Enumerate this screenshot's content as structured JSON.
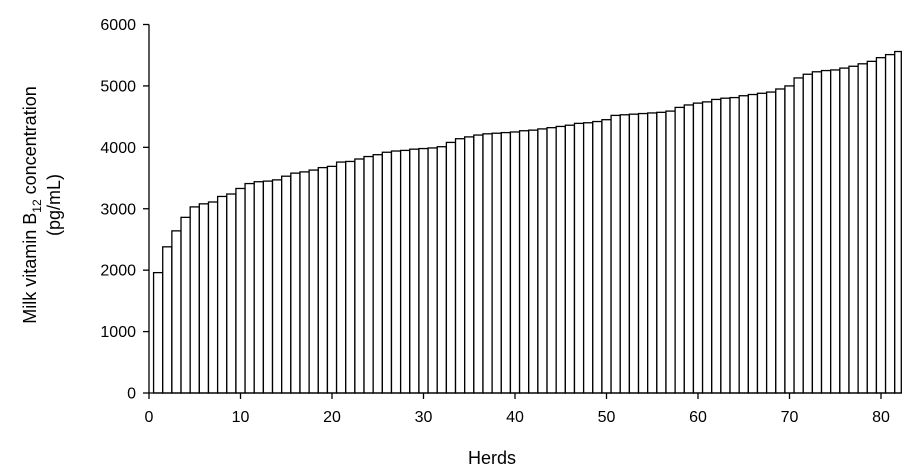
{
  "chart_data": {
    "type": "bar",
    "xlabel": "Herds",
    "ylabel_line1_pre": "Milk vitamin B",
    "ylabel_line1_sub": "12",
    "ylabel_line1_post": " concentration",
    "ylabel_line2": "(pg/mL)",
    "ylim": [
      0,
      6000
    ],
    "yticks": [
      0,
      1000,
      2000,
      3000,
      4000,
      5000,
      6000
    ],
    "xlim": [
      0,
      82.5
    ],
    "xticks": [
      0,
      10,
      20,
      30,
      40,
      50,
      60,
      70,
      80
    ],
    "grid": false,
    "legend": "none",
    "categories": [
      1,
      2,
      3,
      4,
      5,
      6,
      7,
      8,
      9,
      10,
      11,
      12,
      13,
      14,
      15,
      16,
      17,
      18,
      19,
      20,
      21,
      22,
      23,
      24,
      25,
      26,
      27,
      28,
      29,
      30,
      31,
      32,
      33,
      34,
      35,
      36,
      37,
      38,
      39,
      40,
      41,
      42,
      43,
      44,
      45,
      46,
      47,
      48,
      49,
      50,
      51,
      52,
      53,
      54,
      55,
      56,
      57,
      58,
      59,
      60,
      61,
      62,
      63,
      64,
      65,
      66,
      67,
      68,
      69,
      70,
      71,
      72,
      73,
      74,
      75,
      76,
      77,
      78,
      79,
      80,
      81,
      82
    ],
    "values": [
      1960,
      2380,
      2640,
      2860,
      3030,
      3080,
      3110,
      3200,
      3240,
      3330,
      3410,
      3440,
      3450,
      3470,
      3530,
      3580,
      3600,
      3630,
      3670,
      3690,
      3760,
      3770,
      3810,
      3850,
      3880,
      3920,
      3940,
      3950,
      3970,
      3980,
      3990,
      4010,
      4080,
      4140,
      4170,
      4200,
      4220,
      4230,
      4240,
      4250,
      4270,
      4280,
      4300,
      4320,
      4340,
      4360,
      4390,
      4400,
      4420,
      4450,
      4520,
      4530,
      4540,
      4550,
      4560,
      4570,
      4590,
      4650,
      4690,
      4720,
      4740,
      4780,
      4800,
      4810,
      4840,
      4860,
      4880,
      4900,
      4950,
      5000,
      5130,
      5190,
      5230,
      5250,
      5260,
      5290,
      5320,
      5360,
      5400,
      5460,
      5510,
      5560
    ]
  }
}
